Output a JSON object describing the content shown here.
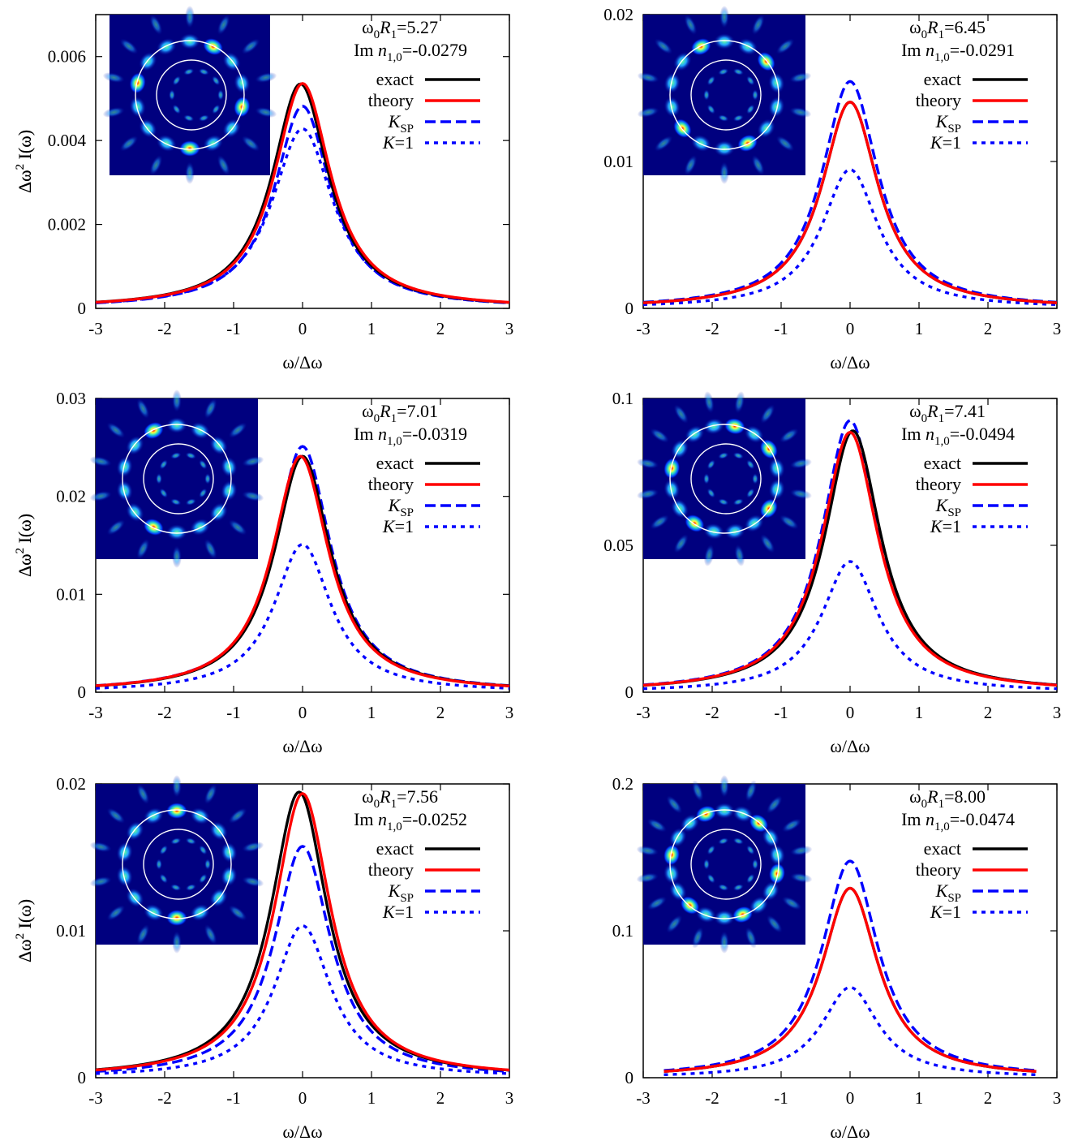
{
  "colors": {
    "exact": "#000000",
    "theory": "#ff0000",
    "k_sp": "#0000ff",
    "k_1": "#0000ff",
    "inset_background": "#00007f",
    "inset_ring": "#ffffff"
  },
  "legend": {
    "exact": "exact",
    "theory": "theory",
    "k_sp_main": "K",
    "k_sp_sub": "SP",
    "k_1": "K=1"
  },
  "axis_labels": {
    "xlabel": "ω/Δω",
    "ylabel_main": "Δω",
    "ylabel_sup": "2",
    "ylabel_tail": " I(ω)"
  },
  "annotation_parts": {
    "omega": "ω",
    "zero": "0",
    "R": "R",
    "one": "1",
    "Im": "Im ",
    "n": "n",
    "sub10": "1,0"
  },
  "chart_data": [
    {
      "type": "line",
      "xlim": [
        -3,
        3
      ],
      "xticks": [
        "-3",
        "-2",
        "-1",
        "0",
        "1",
        "2",
        "3"
      ],
      "ylim": [
        0,
        0.007
      ],
      "yticks": [
        {
          "v": 0,
          "t": "0"
        },
        {
          "v": 0.002,
          "t": "0.002"
        },
        {
          "v": 0.004,
          "t": "0.004"
        },
        {
          "v": 0.006,
          "t": "0.006"
        }
      ],
      "annotation": {
        "w0R1": "=5.27",
        "imn": "=-0.0279"
      },
      "x_span": [
        -3,
        3
      ],
      "series": [
        {
          "name": "exact",
          "style": "solid-black",
          "peak": 0.00535,
          "center": -0.03,
          "gamma": 1.0
        },
        {
          "name": "theory",
          "style": "solid-red",
          "peak": 0.00536,
          "center": 0.0,
          "gamma": 1.0
        },
        {
          "name": "K_SP",
          "style": "dashed-blue",
          "peak": 0.00482,
          "center": 0.0,
          "gamma": 1.0
        },
        {
          "name": "K=1",
          "style": "dotted-blue",
          "peak": 0.00428,
          "center": 0.0,
          "gamma": 1.08
        }
      ],
      "inset": {
        "lobes": 14,
        "bright": [
          0,
          3,
          7,
          11
        ]
      }
    },
    {
      "type": "line",
      "xlim": [
        -3,
        3
      ],
      "xticks": [
        "-3",
        "-2",
        "-1",
        "0",
        "1",
        "2",
        "3"
      ],
      "ylim": [
        0,
        0.02
      ],
      "yticks": [
        {
          "v": 0,
          "t": "0"
        },
        {
          "v": 0.01,
          "t": "0.01"
        },
        {
          "v": 0.02,
          "t": "0.02"
        }
      ],
      "annotation": {
        "w0R1": "=6.45",
        "imn": "=-0.0291"
      },
      "x_span": [
        -3,
        3
      ],
      "series": [
        {
          "name": "exact",
          "style": "solid-black",
          "peak": 0.01405,
          "center": 0.0,
          "gamma": 1.0
        },
        {
          "name": "theory",
          "style": "solid-red",
          "peak": 0.01405,
          "center": 0.0,
          "gamma": 1.0
        },
        {
          "name": "K_SP",
          "style": "dashed-blue",
          "peak": 0.01545,
          "center": 0.0,
          "gamma": 1.0
        },
        {
          "name": "K=1",
          "style": "dotted-blue",
          "peak": 0.00945,
          "center": 0.0,
          "gamma": 1.0
        }
      ],
      "inset": {
        "lobes": 14,
        "bright": [
          2,
          5,
          9,
          12
        ]
      }
    },
    {
      "type": "line",
      "xlim": [
        -3,
        3
      ],
      "xticks": [
        "-3",
        "-2",
        "-1",
        "0",
        "1",
        "2",
        "3"
      ],
      "ylim": [
        0,
        0.03
      ],
      "yticks": [
        {
          "v": 0,
          "t": "0"
        },
        {
          "v": 0.01,
          "t": "0.01"
        },
        {
          "v": 0.02,
          "t": "0.02"
        },
        {
          "v": 0.03,
          "t": "0.03"
        }
      ],
      "annotation": {
        "w0R1": "=7.01",
        "imn": "=-0.0319"
      },
      "x_span": [
        -3,
        3
      ],
      "series": [
        {
          "name": "exact",
          "style": "solid-black",
          "peak": 0.0241,
          "center": 0.0,
          "gamma": 1.0
        },
        {
          "name": "theory",
          "style": "solid-red",
          "peak": 0.0241,
          "center": -0.03,
          "gamma": 1.0
        },
        {
          "name": "K_SP",
          "style": "dashed-blue",
          "peak": 0.0251,
          "center": 0.0,
          "gamma": 1.0
        },
        {
          "name": "K=1",
          "style": "dotted-blue",
          "peak": 0.0151,
          "center": 0.0,
          "gamma": 1.0
        }
      ],
      "inset": {
        "lobes": 14,
        "bright": [
          4,
          9
        ]
      }
    },
    {
      "type": "line",
      "xlim": [
        -3,
        3
      ],
      "xticks": [
        "-3",
        "-2",
        "-1",
        "0",
        "1",
        "2",
        "3"
      ],
      "ylim": [
        0,
        0.1
      ],
      "yticks": [
        {
          "v": 0,
          "t": "0"
        },
        {
          "v": 0.05,
          "t": "0.05"
        },
        {
          "v": 0.1,
          "t": "0.1"
        }
      ],
      "annotation": {
        "w0R1": "=7.41",
        "imn": "=-0.0494"
      },
      "x_span": [
        -3,
        3
      ],
      "series": [
        {
          "name": "exact",
          "style": "solid-black",
          "peak": 0.089,
          "center": 0.04,
          "gamma": 1.0
        },
        {
          "name": "theory",
          "style": "solid-red",
          "peak": 0.0885,
          "center": 0.0,
          "gamma": 1.0
        },
        {
          "name": "K_SP",
          "style": "dashed-blue",
          "peak": 0.0925,
          "center": 0.0,
          "gamma": 1.0
        },
        {
          "name": "K=1",
          "style": "dotted-blue",
          "peak": 0.0445,
          "center": 0.0,
          "gamma": 1.0
        }
      ],
      "inset": {
        "lobes": 16,
        "bright": [
          1,
          5,
          8,
          12,
          14
        ]
      }
    },
    {
      "type": "line",
      "xlim": [
        -3,
        3
      ],
      "xticks": [
        "-3",
        "-2",
        "-1",
        "0",
        "1",
        "2",
        "3"
      ],
      "ylim": [
        0,
        0.02
      ],
      "yticks": [
        {
          "v": 0,
          "t": "0"
        },
        {
          "v": 0.01,
          "t": "0.01"
        },
        {
          "v": 0.02,
          "t": "0.02"
        }
      ],
      "annotation": {
        "w0R1": "=7.56",
        "imn": "=-0.0252"
      },
      "x_span": [
        -3,
        3
      ],
      "series": [
        {
          "name": "exact",
          "style": "solid-black",
          "peak": 0.01945,
          "center": -0.05,
          "gamma": 1.0
        },
        {
          "name": "theory",
          "style": "solid-red",
          "peak": 0.01935,
          "center": 0.0,
          "gamma": 1.0
        },
        {
          "name": "K_SP",
          "style": "dashed-blue",
          "peak": 0.01575,
          "center": 0.0,
          "gamma": 1.0
        },
        {
          "name": "K=1",
          "style": "dotted-blue",
          "peak": 0.01035,
          "center": 0.0,
          "gamma": 1.0
        }
      ],
      "inset": {
        "lobes": 14,
        "bright": [
          3,
          10
        ]
      }
    },
    {
      "type": "line",
      "xlim": [
        -3,
        3
      ],
      "xticks": [
        "-3",
        "-2",
        "-1",
        "0",
        "1",
        "2",
        "3"
      ],
      "ylim": [
        0,
        0.2
      ],
      "yticks": [
        {
          "v": 0,
          "t": "0"
        },
        {
          "v": 0.1,
          "t": "0.1"
        },
        {
          "v": 0.2,
          "t": "0.2"
        }
      ],
      "annotation": {
        "w0R1": "=8.00",
        "imn": "=-0.0474"
      },
      "x_span": [
        -2.7,
        2.7
      ],
      "series": [
        {
          "name": "exact",
          "style": "solid-black",
          "peak": 0.129,
          "center": 0.0,
          "gamma": 1.0
        },
        {
          "name": "theory",
          "style": "solid-red",
          "peak": 0.129,
          "center": 0.0,
          "gamma": 1.0
        },
        {
          "name": "K_SP",
          "style": "dashed-blue",
          "peak": 0.1475,
          "center": 0.0,
          "gamma": 1.0
        },
        {
          "name": "K=1",
          "style": "dotted-blue",
          "peak": 0.0615,
          "center": 0.0,
          "gamma": 1.0
        }
      ],
      "inset": {
        "lobes": 18,
        "bright": [
          0,
          3,
          6,
          9,
          12,
          15
        ]
      }
    }
  ]
}
